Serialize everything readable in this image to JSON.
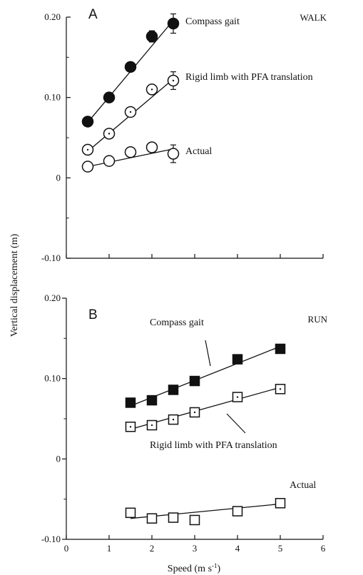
{
  "figure": {
    "ylabel": "Vertical displacement (m)",
    "xlabel": "Speed (m s",
    "xlabel_sup": "-1",
    "xlabel_close": ")"
  },
  "chart_data": [
    {
      "type": "scatter",
      "panel": "A",
      "condition": "WALK",
      "xlim": [
        0,
        6
      ],
      "ylim": [
        -0.1,
        0.2
      ],
      "yticks": [
        -0.1,
        0,
        0.1,
        0.2
      ],
      "ytick_labels": [
        "-0.10",
        "0",
        "0.10",
        "0.20"
      ],
      "xticks": [
        0,
        1,
        2,
        3,
        4,
        5,
        6
      ],
      "xtick_labels": [],
      "grid": false,
      "series": [
        {
          "name": "Compass gait",
          "marker": "filled-circle",
          "x": [
            0.5,
            1.0,
            1.5,
            2.0,
            2.5
          ],
          "y": [
            0.07,
            0.1,
            0.138,
            0.176,
            0.192
          ],
          "err": [
            0,
            0,
            0,
            0.007,
            0.012
          ],
          "fit": [
            [
              0.5,
              0.069
            ],
            [
              2.5,
              0.196
            ]
          ]
        },
        {
          "name": "Rigid limb with PFA translation",
          "marker": "open-circle-dot",
          "x": [
            0.5,
            1.0,
            1.5,
            2.0,
            2.5
          ],
          "y": [
            0.035,
            0.055,
            0.082,
            0.11,
            0.121
          ],
          "err": [
            0,
            0,
            0,
            0.005,
            0.011
          ],
          "fit": [
            [
              0.5,
              0.033
            ],
            [
              2.5,
              0.123
            ]
          ]
        },
        {
          "name": "Actual",
          "marker": "open-circle",
          "x": [
            0.5,
            1.0,
            1.5,
            2.0,
            2.5
          ],
          "y": [
            0.014,
            0.021,
            0.032,
            0.038,
            0.03
          ],
          "err": [
            0,
            0,
            0,
            0.006,
            0.011
          ],
          "fit": [
            [
              0.5,
              0.014
            ],
            [
              2.5,
              0.036
            ]
          ]
        }
      ]
    },
    {
      "type": "scatter",
      "panel": "B",
      "condition": "RUN",
      "xlim": [
        0,
        6
      ],
      "ylim": [
        -0.1,
        0.2
      ],
      "yticks": [
        -0.1,
        0,
        0.1,
        0.2
      ],
      "ytick_labels": [
        "-0.10",
        "0",
        "0.10",
        "0.20"
      ],
      "xticks": [
        0,
        1,
        2,
        3,
        4,
        5,
        6
      ],
      "xtick_labels": [
        "0",
        "1",
        "2",
        "3",
        "4",
        "5",
        "6"
      ],
      "grid": false,
      "series": [
        {
          "name": "Compass gait",
          "marker": "filled-square",
          "x": [
            1.5,
            2.0,
            2.5,
            3.0,
            4.0,
            5.0
          ],
          "y": [
            0.07,
            0.073,
            0.086,
            0.097,
            0.124,
            0.137
          ],
          "err": [
            0,
            0,
            0,
            0,
            0,
            0.004
          ],
          "fit": [
            [
              1.5,
              0.066
            ],
            [
              5.0,
              0.14
            ]
          ]
        },
        {
          "name": "Rigid limb with PFA translation",
          "marker": "open-square-dot",
          "x": [
            1.5,
            2.0,
            2.5,
            3.0,
            4.0,
            5.0
          ],
          "y": [
            0.04,
            0.042,
            0.049,
            0.058,
            0.077,
            0.087
          ],
          "err": [
            0,
            0,
            0,
            0,
            0,
            0.004
          ],
          "fit": [
            [
              1.5,
              0.037
            ],
            [
              5.0,
              0.089
            ]
          ]
        },
        {
          "name": "Actual",
          "marker": "open-square",
          "x": [
            1.5,
            2.0,
            2.5,
            3.0,
            4.0,
            5.0
          ],
          "y": [
            -0.067,
            -0.074,
            -0.073,
            -0.076,
            -0.065,
            -0.055
          ],
          "err": [
            0.003,
            0.003,
            0.003,
            0.004,
            0.003,
            0.005
          ],
          "fit": [
            [
              1.5,
              -0.074
            ],
            [
              5.0,
              -0.056
            ]
          ]
        }
      ]
    }
  ]
}
